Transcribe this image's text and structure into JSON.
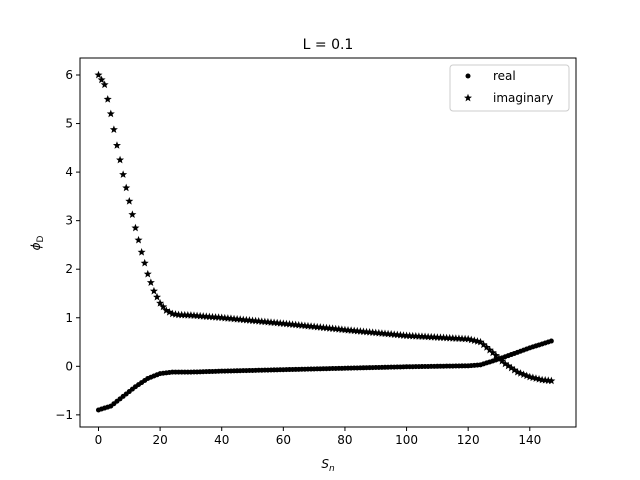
{
  "chart_data": {
    "type": "scatter",
    "title": "L = 0.1",
    "xlabel_base": "S",
    "xlabel_sub": "n",
    "ylabel_base": "ϕ",
    "ylabel_sub": "D",
    "xlim": [
      -6,
      155
    ],
    "ylim": [
      -1.25,
      6.35
    ],
    "xticks": [
      0,
      20,
      40,
      60,
      80,
      100,
      120,
      140
    ],
    "yticks": [
      -1,
      0,
      1,
      2,
      3,
      4,
      5,
      6
    ],
    "legend_position": "top-right",
    "n_points": 148,
    "series": [
      {
        "name": "real",
        "marker": "circle",
        "color": "#000000",
        "x": [
          0,
          4,
          8,
          12,
          16,
          20,
          24,
          30,
          40,
          60,
          80,
          100,
          120,
          124,
          130,
          140,
          147
        ],
        "y": [
          -0.9,
          -0.82,
          -0.62,
          -0.42,
          -0.25,
          -0.15,
          -0.12,
          -0.12,
          -0.1,
          -0.07,
          -0.04,
          -0.01,
          0.01,
          0.03,
          0.15,
          0.38,
          0.52
        ]
      },
      {
        "name": "imaginary",
        "marker": "star",
        "color": "#000000",
        "x": [
          0,
          2,
          4,
          6,
          8,
          10,
          12,
          14,
          16,
          18,
          20,
          22,
          24,
          26,
          30,
          40,
          60,
          80,
          100,
          120,
          124,
          128,
          132,
          136,
          140,
          144,
          147
        ],
        "y": [
          6.0,
          5.8,
          5.2,
          4.55,
          3.95,
          3.4,
          2.85,
          2.35,
          1.9,
          1.55,
          1.3,
          1.15,
          1.08,
          1.06,
          1.05,
          1.0,
          0.88,
          0.75,
          0.63,
          0.56,
          0.5,
          0.28,
          0.05,
          -0.12,
          -0.22,
          -0.28,
          -0.3
        ]
      }
    ]
  }
}
